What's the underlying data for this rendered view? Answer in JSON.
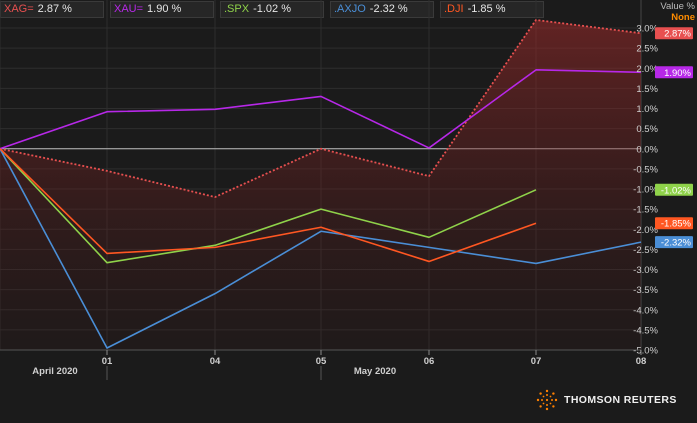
{
  "legend": [
    {
      "symbol": "XAG=",
      "value": "2.87 %",
      "color": "#e85050"
    },
    {
      "symbol": "XAU=",
      "value": "1.90 %",
      "color": "#b728e8"
    },
    {
      "symbol": ".SPX",
      "value": "-1.02 %",
      "color": "#8fd24a"
    },
    {
      "symbol": ".AXJO",
      "value": "-2.32 %",
      "color": "#4a8ed6"
    },
    {
      "symbol": ".DJI",
      "value": "-1.85 %",
      "color": "#ff5722"
    }
  ],
  "value_header": {
    "line1": "Value %",
    "line2": "None"
  },
  "chart_data": {
    "type": "line",
    "x": [
      "",
      "01",
      "04",
      "05",
      "06",
      "07",
      "08"
    ],
    "x_period_labels": [
      "April 2020",
      "May 2020"
    ],
    "y_ticks": [
      3.0,
      2.5,
      2.0,
      1.5,
      1.0,
      0.5,
      0.0,
      -0.5,
      -1.0,
      -1.5,
      -2.0,
      -2.5,
      -3.0,
      -3.5,
      -4.0,
      -4.5,
      -5.0
    ],
    "y_tick_labels": [
      "3.0%",
      "2.5%",
      "2.0%",
      "1.5%",
      "1.0%",
      "0.5%",
      "0.0%",
      "-0.5%",
      "-1.0%",
      "-1.5%",
      "-2.0%",
      "-2.5%",
      "-3.0%",
      "-3.5%",
      "-4.0%",
      "-4.5%",
      "-5.0%"
    ],
    "ylim": [
      -5.0,
      3.0
    ],
    "grid": true,
    "series": [
      {
        "name": "XAG=",
        "color": "#e85050",
        "style": "dotted",
        "fill": true,
        "values": [
          0.0,
          -0.55,
          -1.2,
          0.0,
          -0.68,
          3.2,
          2.87
        ],
        "last_label": "2.87%"
      },
      {
        "name": "XAU=",
        "color": "#b728e8",
        "style": "solid",
        "values": [
          0.0,
          0.92,
          0.98,
          1.3,
          0.02,
          1.96,
          1.9
        ],
        "last_label": "1.90%"
      },
      {
        "name": ".SPX",
        "color": "#8fd24a",
        "style": "solid",
        "values": [
          0.0,
          -2.83,
          -2.4,
          -1.5,
          -2.2,
          -1.02,
          null
        ],
        "last_label": "-1.02%"
      },
      {
        "name": ".AXJO",
        "color": "#4a8ed6",
        "style": "solid",
        "values": [
          0.0,
          -4.95,
          -3.6,
          -2.05,
          -2.45,
          -2.85,
          -2.32
        ],
        "last_label": "-2.32%"
      },
      {
        "name": ".DJI",
        "color": "#ff5722",
        "style": "solid",
        "values": [
          0.0,
          -2.6,
          -2.45,
          -1.95,
          -2.8,
          -1.85,
          null
        ],
        "last_label": "-1.85%"
      }
    ]
  },
  "logo_text": "THOMSON REUTERS"
}
